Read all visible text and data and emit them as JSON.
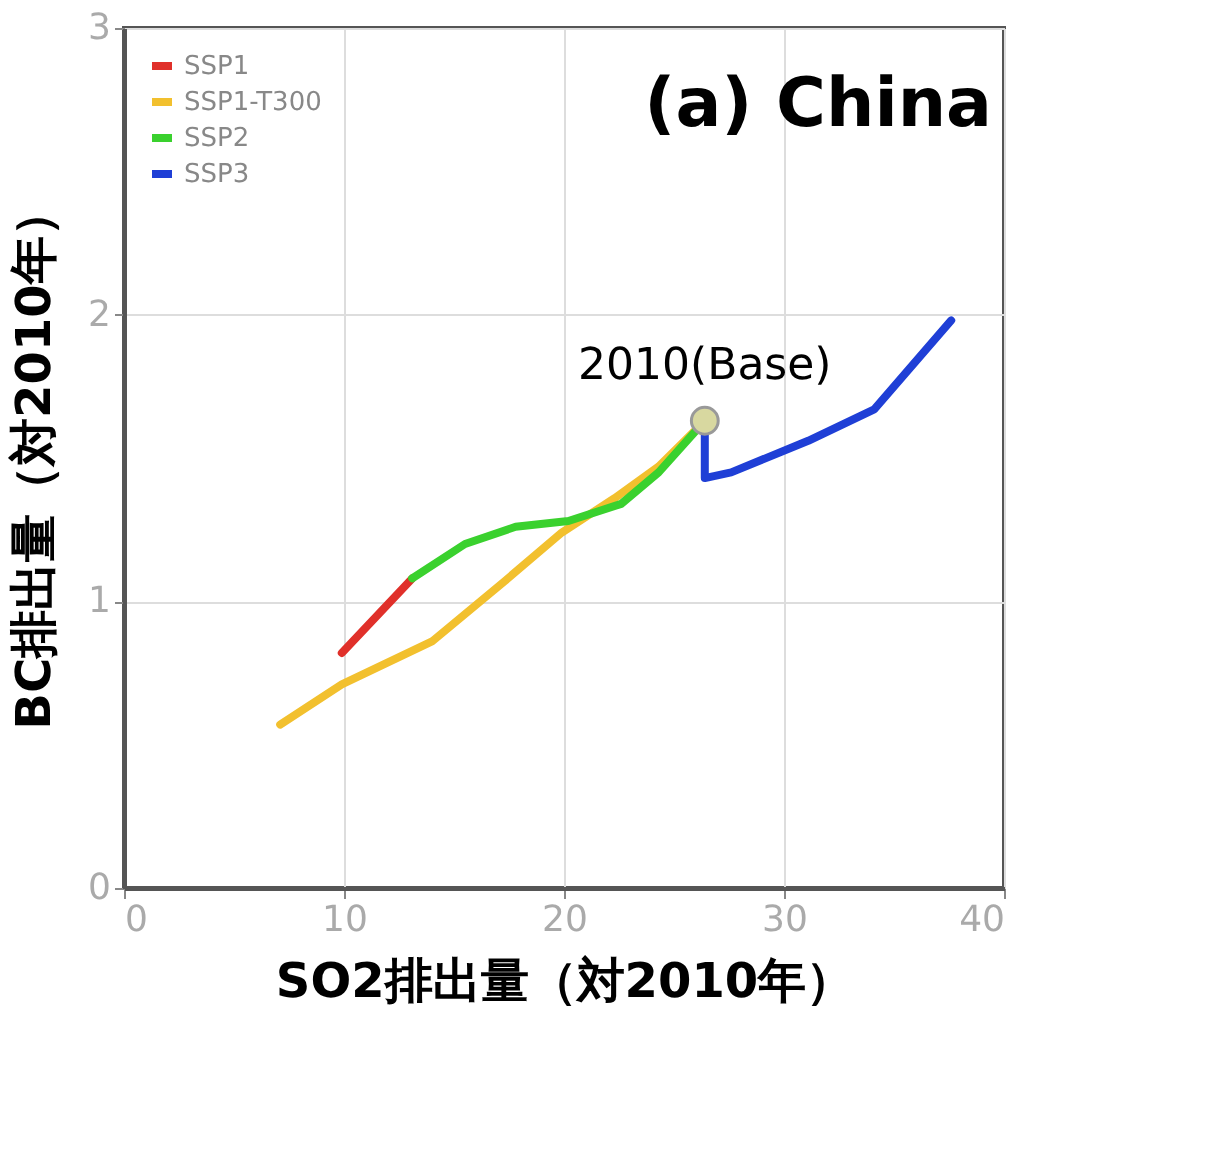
{
  "chart_data": {
    "type": "line",
    "title": "(a) China",
    "xlabel": "SO2排出量（対2010年）",
    "ylabel": "BC排出量（対2010年）",
    "xlim": [
      0,
      40
    ],
    "xticks": [
      0,
      10,
      20,
      30,
      40
    ],
    "ylim": [
      0,
      3
    ],
    "yticks": [
      0,
      1,
      2,
      3
    ],
    "grid": true,
    "legend": "top left",
    "marker": "none",
    "line_style": "solid",
    "series": [
      {
        "name": "SSP1",
        "color": "#e0302a",
        "x": [
          9.9,
          13.1
        ],
        "values": [
          0.82,
          1.08
        ]
      },
      {
        "name": "SSP1-T300",
        "color": "#f2c02e",
        "x": [
          7.1,
          9.9,
          14.0,
          17.3,
          19.9,
          22.3,
          24.3,
          26.4
        ],
        "values": [
          0.57,
          0.71,
          0.86,
          1.07,
          1.24,
          1.36,
          1.47,
          1.63
        ]
      },
      {
        "name": "SSP2",
        "color": "#3ad12e",
        "x": [
          13.1,
          15.5,
          17.8,
          20.2,
          22.6,
          24.3,
          26.4
        ],
        "values": [
          1.08,
          1.2,
          1.26,
          1.28,
          1.34,
          1.45,
          1.63
        ]
      },
      {
        "name": "SSP3",
        "color": "#1f3fd6",
        "x": [
          26.4,
          26.4,
          27.6,
          31.1,
          34.1,
          37.6
        ],
        "values": [
          1.63,
          1.43,
          1.45,
          1.56,
          1.67,
          1.98
        ]
      }
    ],
    "annotations": [
      {
        "text": "2010(Base)",
        "x": 26.4,
        "y": 1.63
      }
    ]
  }
}
